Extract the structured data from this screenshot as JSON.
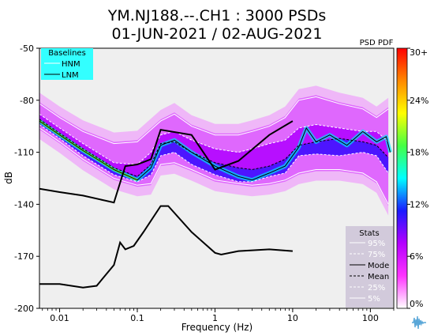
{
  "title_line1": "YM.NJ188.--.CH1 : 3000 PSDs",
  "title_line2": "01-JUN-2021 / 02-AUG-2021",
  "colorbar_title": "PSD PDF",
  "colorbar_ticks": [
    "30+",
    "24%",
    "18%",
    "12%",
    "6%",
    "0%"
  ],
  "colorbar_colors": [
    "#ffffff",
    "#ff33ff",
    "#b400ff",
    "#1a1aff",
    "#00ffff",
    "#44ff44",
    "#ffff00",
    "#ff8800",
    "#ff0000"
  ],
  "baselines_legend": {
    "title": "Baselines",
    "items": [
      "HNM",
      "LNM"
    ]
  },
  "stats_legend": {
    "title": "Stats",
    "items": [
      "95%",
      "75%",
      "Mode",
      "Mean",
      "25%",
      "5%"
    ]
  },
  "chart_data": {
    "type": "scatter",
    "xlabel": "Frequency (Hz)",
    "ylabel": "dB",
    "xscale": "log",
    "xlim": [
      0.0055,
      200
    ],
    "ylim": [
      -200,
      -50
    ],
    "x_ticks": [
      {
        "v": 0.01,
        "label": "0.01"
      },
      {
        "v": 0.1,
        "label": "0.1"
      },
      {
        "v": 1,
        "label": "1"
      },
      {
        "v": 10,
        "label": "10"
      },
      {
        "v": 100,
        "label": "100"
      }
    ],
    "y_ticks": [
      {
        "v": -50,
        "label": "-50"
      },
      {
        "v": -80,
        "label": "-80"
      },
      {
        "v": -110,
        "label": "-110"
      },
      {
        "v": -140,
        "label": "-140"
      },
      {
        "v": -170,
        "label": "-170"
      },
      {
        "v": -200,
        "label": "-200"
      }
    ],
    "series": [
      {
        "name": "HNM",
        "x": [
          0.0055,
          0.01,
          0.02,
          0.05,
          0.07,
          0.1,
          0.15,
          0.2,
          0.5,
          1,
          2,
          5,
          10
        ],
        "y": [
          -131,
          -133,
          -135,
          -139,
          -118,
          -117,
          -114,
          -97,
          -100,
          -120,
          -115,
          -100,
          -92
        ]
      },
      {
        "name": "LNM",
        "x": [
          0.0055,
          0.01,
          0.02,
          0.03,
          0.05,
          0.06,
          0.07,
          0.09,
          0.12,
          0.2,
          0.25,
          0.5,
          1,
          1.2,
          2,
          5,
          10
        ],
        "y": [
          -186,
          -186,
          -188,
          -187,
          -175,
          -162,
          -166,
          -164,
          -156,
          -141,
          -141,
          -156,
          -168,
          -169,
          -167,
          -166,
          -167
        ]
      },
      {
        "name": "95%",
        "x": [
          0.0055,
          0.01,
          0.02,
          0.05,
          0.1,
          0.2,
          0.3,
          0.5,
          1,
          2,
          3,
          5,
          8,
          12,
          20,
          40,
          80,
          120,
          170
        ],
        "y": [
          -82,
          -90,
          -98,
          -105,
          -104,
          -92,
          -88,
          -95,
          -100,
          -100,
          -98,
          -95,
          -90,
          -80,
          -78,
          -82,
          -85,
          -90,
          -85
        ]
      },
      {
        "name": "75%",
        "x": [
          0.0055,
          0.01,
          0.02,
          0.05,
          0.1,
          0.15,
          0.2,
          0.3,
          0.5,
          1,
          2,
          3,
          5,
          8,
          12,
          20,
          40,
          80,
          120,
          170
        ],
        "y": [
          -88,
          -96,
          -105,
          -116,
          -117,
          -110,
          -100,
          -98,
          -103,
          -108,
          -110,
          -108,
          -105,
          -103,
          -96,
          -94,
          -96,
          -98,
          -98,
          -104
        ]
      },
      {
        "name": "Mode",
        "x": [
          0.0055,
          0.01,
          0.02,
          0.05,
          0.1,
          0.15,
          0.2,
          0.3,
          0.5,
          1,
          2,
          3,
          5,
          8,
          12,
          15,
          20,
          30,
          50,
          80,
          120,
          160,
          180
        ],
        "y": [
          -92,
          -100,
          -109,
          -120,
          -126,
          -119,
          -106,
          -103,
          -110,
          -118,
          -124,
          -126,
          -122,
          -118,
          -107,
          -96,
          -104,
          -100,
          -106,
          -98,
          -104,
          -101,
          -110
        ]
      },
      {
        "name": "Mean",
        "x": [
          0.0055,
          0.01,
          0.02,
          0.05,
          0.1,
          0.15,
          0.2,
          0.3,
          0.5,
          1,
          2,
          3,
          5,
          8,
          12,
          20,
          40,
          80,
          120,
          170
        ],
        "y": [
          -91,
          -99,
          -108,
          -119,
          -124,
          -117,
          -105,
          -104,
          -110,
          -116,
          -119,
          -120,
          -118,
          -114,
          -106,
          -104,
          -102,
          -104,
          -106,
          -113
        ]
      },
      {
        "name": "25%",
        "x": [
          0.0055,
          0.01,
          0.02,
          0.05,
          0.1,
          0.15,
          0.2,
          0.3,
          0.5,
          1,
          2,
          3,
          5,
          8,
          12,
          20,
          40,
          80,
          120,
          170
        ],
        "y": [
          -94,
          -102,
          -112,
          -123,
          -127,
          -123,
          -112,
          -110,
          -117,
          -123,
          -127,
          -127,
          -124,
          -122,
          -112,
          -111,
          -112,
          -110,
          -112,
          -122
        ]
      },
      {
        "name": "5%",
        "x": [
          0.0055,
          0.01,
          0.02,
          0.05,
          0.1,
          0.15,
          0.2,
          0.3,
          0.5,
          1,
          2,
          3,
          5,
          8,
          12,
          20,
          40,
          80,
          120,
          170
        ],
        "y": [
          -96,
          -104,
          -114,
          -125,
          -129,
          -128,
          -117,
          -116,
          -120,
          -126,
          -128,
          -129,
          -128,
          -126,
          -122,
          -120,
          -120,
          -122,
          -127,
          -140
        ]
      }
    ]
  }
}
